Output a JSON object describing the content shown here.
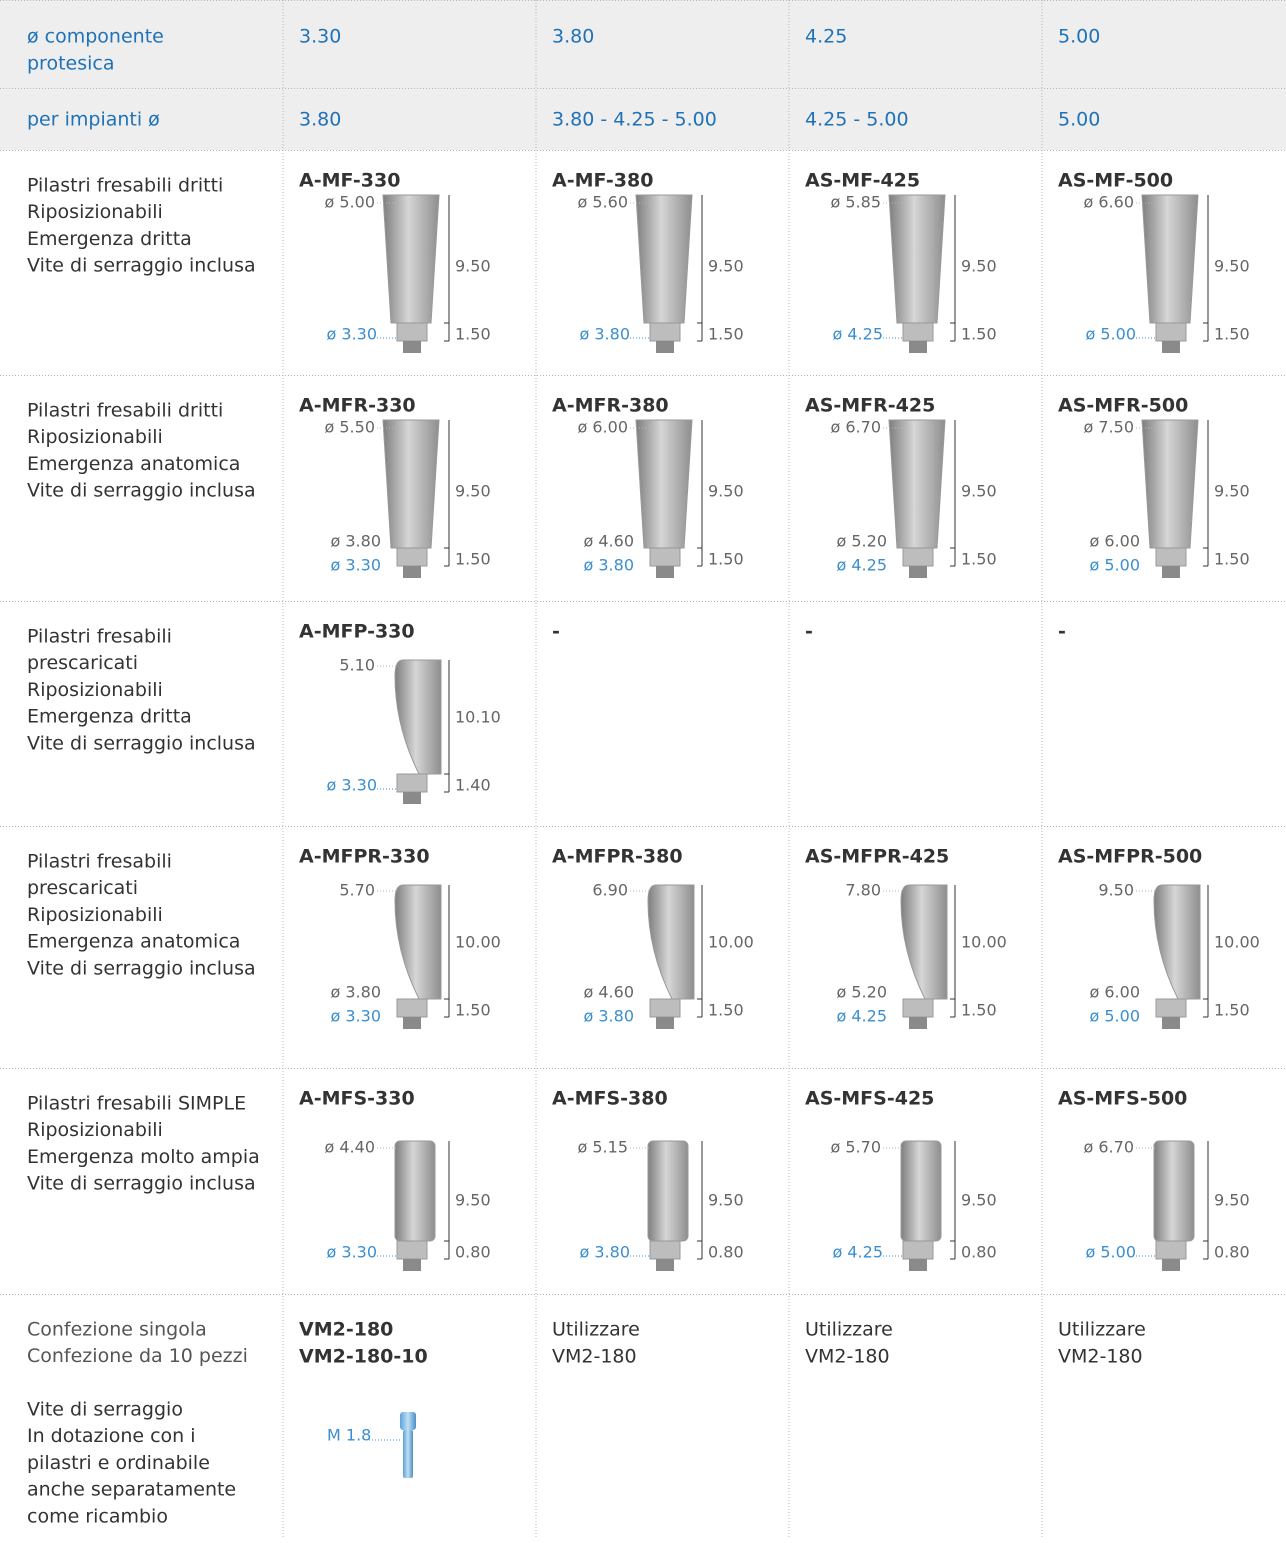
{
  "header": {
    "label": [
      "ø componente",
      "protesica"
    ],
    "values": [
      "3.30",
      "3.80",
      "4.25",
      "5.00"
    ]
  },
  "implants": {
    "label": [
      "per impianti ø"
    ],
    "values": [
      "3.80",
      "3.80 - 4.25 - 5.00",
      "4.25 - 5.00",
      "5.00"
    ]
  },
  "rows": [
    {
      "label": [
        "Pilastri fresabili dritti",
        "Riposizionabili",
        "Emergenza dritta",
        "Vite di serraggio inclusa"
      ],
      "cells": [
        {
          "code": "A-MF-330",
          "top": "ø 5.00",
          "height": "9.50",
          "collar": "1.50",
          "base": "ø 3.30"
        },
        {
          "code": "A-MF-380",
          "top": "ø 5.60",
          "height": "9.50",
          "collar": "1.50",
          "base": "ø 3.80"
        },
        {
          "code": "AS-MF-425",
          "top": "ø 5.85",
          "height": "9.50",
          "collar": "1.50",
          "base": "ø 4.25"
        },
        {
          "code": "AS-MF-500",
          "top": "ø 6.60",
          "height": "9.50",
          "collar": "1.50",
          "base": "ø 5.00"
        }
      ]
    },
    {
      "label": [
        "Pilastri fresabili dritti",
        "Riposizionabili",
        "Emergenza anatomica",
        "Vite di serraggio inclusa"
      ],
      "cells": [
        {
          "code": "A-MFR-330",
          "top": "ø 5.50",
          "height": "9.50",
          "collar": "1.50",
          "mid": "ø 3.80",
          "base": "ø 3.30"
        },
        {
          "code": "A-MFR-380",
          "top": "ø 6.00",
          "height": "9.50",
          "collar": "1.50",
          "mid": "ø 4.60",
          "base": "ø 3.80"
        },
        {
          "code": "AS-MFR-425",
          "top": "ø 6.70",
          "height": "9.50",
          "collar": "1.50",
          "mid": "ø 5.20",
          "base": "ø 4.25"
        },
        {
          "code": "AS-MFR-500",
          "top": "ø 7.50",
          "height": "9.50",
          "collar": "1.50",
          "mid": "ø 6.00",
          "base": "ø 5.00"
        }
      ]
    },
    {
      "label": [
        "Pilastri fresabili",
        "prescaricati",
        "Riposizionabili",
        "Emergenza dritta",
        "Vite di serraggio inclusa"
      ],
      "cells": [
        {
          "code": "A-MFP-330",
          "top": "5.10",
          "height": "10.10",
          "collar": "1.40",
          "base": "ø 3.30"
        },
        {
          "code": "-"
        },
        {
          "code": "-"
        },
        {
          "code": "-"
        }
      ]
    },
    {
      "label": [
        "Pilastri fresabili",
        "prescaricati",
        "Riposizionabili",
        "Emergenza anatomica",
        "Vite di serraggio inclusa"
      ],
      "cells": [
        {
          "code": "A-MFPR-330",
          "top": "5.70",
          "height": "10.00",
          "collar": "1.50",
          "mid": "ø 3.80",
          "base": "ø 3.30"
        },
        {
          "code": "A-MFPR-380",
          "top": "6.90",
          "height": "10.00",
          "collar": "1.50",
          "mid": "ø 4.60",
          "base": "ø 3.80"
        },
        {
          "code": "AS-MFPR-425",
          "top": "7.80",
          "height": "10.00",
          "collar": "1.50",
          "mid": "ø 5.20",
          "base": "ø 4.25"
        },
        {
          "code": "AS-MFPR-500",
          "top": "9.50",
          "height": "10.00",
          "collar": "1.50",
          "mid": "ø 6.00",
          "base": "ø 5.00"
        }
      ]
    },
    {
      "label": [
        "Pilastri fresabili SIMPLE",
        "Riposizionabili",
        "Emergenza molto ampia",
        "Vite di serraggio inclusa"
      ],
      "cells": [
        {
          "code": "A-MFS-330",
          "top": "ø 4.40",
          "height": "9.50",
          "collar": "0.80",
          "base": "ø 3.30"
        },
        {
          "code": "A-MFS-380",
          "top": "ø 5.15",
          "height": "9.50",
          "collar": "0.80",
          "base": "ø 3.80"
        },
        {
          "code": "AS-MFS-425",
          "top": "ø 5.70",
          "height": "9.50",
          "collar": "0.80",
          "base": "ø 4.25"
        },
        {
          "code": "AS-MFS-500",
          "top": "ø 6.70",
          "height": "9.50",
          "collar": "0.80",
          "base": "ø 5.00"
        }
      ]
    },
    {
      "label": [
        "Confezione singola",
        "Confezione da 10 pezzi"
      ],
      "note": [
        "Vite di serraggio",
        "In dotazione con i",
        "pilastri e ordinabile",
        "anche separatamente",
        "come ricambio"
      ],
      "cells": [
        {
          "codes": [
            "VM2-180",
            "VM2-180-10"
          ],
          "thread": "M 1.8"
        },
        {
          "text": [
            "Utilizzare",
            "VM2-180"
          ]
        },
        {
          "text": [
            "Utilizzare",
            "VM2-180"
          ]
        },
        {
          "text": [
            "Utilizzare",
            "VM2-180"
          ]
        }
      ]
    }
  ]
}
